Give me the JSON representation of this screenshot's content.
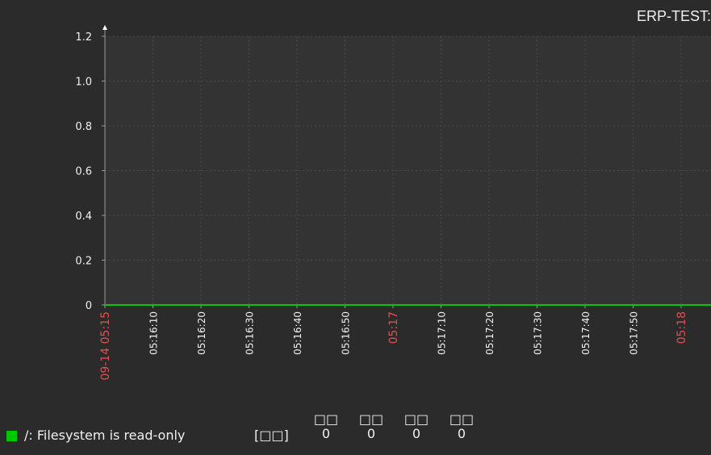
{
  "header": {
    "title": "ERP-TEST:"
  },
  "colors": {
    "background": "#2b2b2b",
    "plot_background": "#333333",
    "grid": "#4a4a4a",
    "axis": "#9a9a9a",
    "tick_text": "#f0f0f0",
    "tick_text_major": "#e05050",
    "series": "#00c800"
  },
  "chart_data": {
    "type": "line",
    "title": "ERP-TEST:",
    "xlabel": "",
    "ylabel": "",
    "ylim": [
      0,
      1.2
    ],
    "grid": true,
    "y_ticks": [
      "0",
      "0.2",
      "0.4",
      "0.6",
      "0.8",
      "1.0",
      "1.2"
    ],
    "y_tick_values": [
      0,
      0.2,
      0.4,
      0.6,
      0.8,
      1.0,
      1.2
    ],
    "x_ticks": [
      {
        "label": "09-14 05:15",
        "major": true
      },
      {
        "label": "05:16:10",
        "major": false
      },
      {
        "label": "05:16:20",
        "major": false
      },
      {
        "label": "05:16:30",
        "major": false
      },
      {
        "label": "05:16:40",
        "major": false
      },
      {
        "label": "05:16:50",
        "major": false
      },
      {
        "label": "05:17",
        "major": true
      },
      {
        "label": "05:17:10",
        "major": false
      },
      {
        "label": "05:17:20",
        "major": false
      },
      {
        "label": "05:17:30",
        "major": false
      },
      {
        "label": "05:17:40",
        "major": false
      },
      {
        "label": "05:17:50",
        "major": false
      },
      {
        "label": "05:18",
        "major": true
      }
    ],
    "series": [
      {
        "name": "/: Filesystem is read-only",
        "values": [
          0,
          0,
          0,
          0,
          0,
          0,
          0,
          0,
          0,
          0,
          0,
          0,
          0,
          0
        ]
      }
    ]
  },
  "legend": {
    "items": [
      {
        "name": "/: Filesystem is read-only",
        "unit": "[□□]",
        "stats": [
          {
            "label": "□□",
            "value": "0"
          },
          {
            "label": "□□",
            "value": "0"
          },
          {
            "label": "□□",
            "value": "0"
          },
          {
            "label": "□□",
            "value": "0"
          }
        ]
      }
    ]
  }
}
